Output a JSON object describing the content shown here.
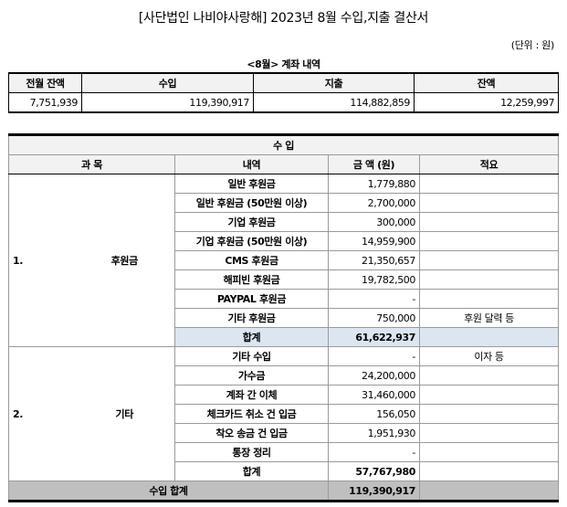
{
  "title": "[사단법인 나비야사랑해] 2023년 8월 수입,지출 결산서",
  "unit": "(단위 : 원)",
  "account": {
    "caption": "<8월> 계좌 내역",
    "headers": [
      "전월 잔액",
      "수입",
      "지출",
      "잔액"
    ],
    "values": [
      "7,751,939",
      "119,390,917",
      "114,882,859",
      "12,259,997"
    ]
  },
  "income": {
    "section_title": "수 입",
    "headers": [
      "과 목",
      "내역",
      "금 액 (원)",
      "적요"
    ],
    "groups": [
      {
        "number": "1.",
        "name": "후원금",
        "rows": [
          {
            "item": "일반 후원금",
            "amount": "1,779,880",
            "note": ""
          },
          {
            "item": "일반 후원금 (50만원 이상)",
            "amount": "2,700,000",
            "note": ""
          },
          {
            "item": "기업 후원금",
            "amount": "300,000",
            "note": ""
          },
          {
            "item": "기업 후원금 (50만원 이상)",
            "amount": "14,959,900",
            "note": ""
          },
          {
            "item": "CMS 후원금",
            "amount": "21,350,657",
            "note": ""
          },
          {
            "item": "해피빈 후원금",
            "amount": "19,782,500",
            "note": ""
          },
          {
            "item": "PAYPAL 후원금",
            "amount": "-",
            "note": ""
          },
          {
            "item": "기타 후원금",
            "amount": "750,000",
            "note": "후원 달력 등"
          }
        ],
        "subtotal_label": "합계",
        "subtotal": "61,622,937"
      },
      {
        "number": "2.",
        "name": "기타",
        "rows": [
          {
            "item": "기타 수입",
            "amount": "-",
            "note": "이자 등"
          },
          {
            "item": "가수금",
            "amount": "24,200,000",
            "note": ""
          },
          {
            "item": "계좌 간 이체",
            "amount": "31,460,000",
            "note": ""
          },
          {
            "item": "체크카드 취소 건 입금",
            "amount": "156,050",
            "note": ""
          },
          {
            "item": "착오 송금 건 입금",
            "amount": "1,951,930",
            "note": ""
          },
          {
            "item": "통장 정리",
            "amount": "-",
            "note": ""
          }
        ],
        "subtotal_label": "합계",
        "subtotal": "57,767,980"
      }
    ],
    "total_label": "수입 합계",
    "total": "119,390,917"
  }
}
